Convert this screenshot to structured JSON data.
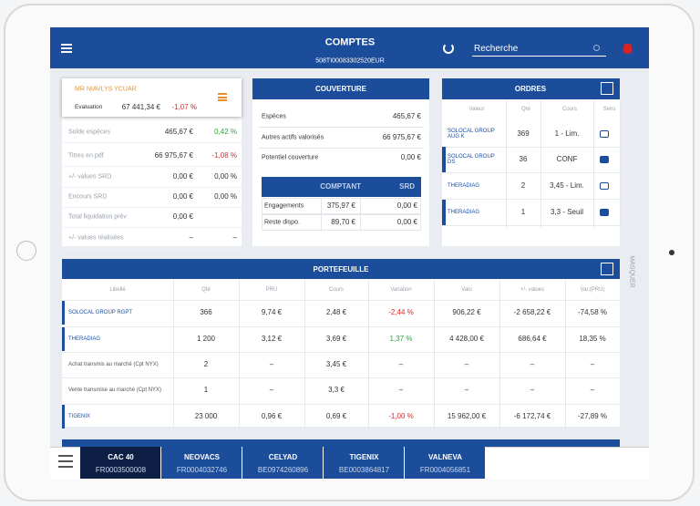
{
  "header": {
    "title": "COMPTES",
    "account": "508TI00083302520EUR",
    "search": "Recherche"
  },
  "account": {
    "name": "MR NIAVLYS YCUAR",
    "evaluation_label": "Evaluation",
    "evaluation_value": "67 441,34 €",
    "evaluation_change": "-1,07 %",
    "rows": [
      [
        "Solde espèces",
        "465,67 €",
        "0,42 %"
      ],
      [
        "Titres en pdf",
        "66 975,67 €",
        "-1,08 %"
      ],
      [
        "+/- values SRD",
        "0,00 €",
        "0,00 %"
      ],
      [
        "Encours SRD",
        "0,00 €",
        "0,00 %"
      ],
      [
        "Total liquidation prév",
        "0,00 €"
      ],
      [
        "+/- values réalisées",
        "–",
        "–"
      ]
    ]
  },
  "couverture": {
    "title": "COUVERTURE",
    "rows": [
      [
        "Espèces",
        "465,67 €"
      ],
      [
        "Autres actifs valorisés",
        "66 975,67 €"
      ],
      [
        "Potentiel couverture",
        "0,00 €"
      ]
    ],
    "subtable": {
      "headers": [
        "COMPTANT",
        "SRD"
      ],
      "rows": [
        [
          "Engagements",
          "375,97 €",
          "0,00 €"
        ],
        [
          "Reste dispo.",
          "89,70 €",
          "0,00 €"
        ]
      ]
    }
  },
  "orders": {
    "title": "ORDRES",
    "headers": [
      "Valeur",
      "Qté",
      "Cours",
      "Sens"
    ],
    "rows": [
      [
        "SOLOCAL GROUP AUG K",
        "369",
        "1 - Lim."
      ],
      [
        "SOLOCAL GROUP DS",
        "36",
        "CONF"
      ],
      [
        "THERADIAG",
        "2",
        "3,45 - Lim."
      ],
      [
        "THERADIAG",
        "1",
        "3,3 - Seuil"
      ]
    ]
  },
  "portfolio": {
    "title": "PORTEFEUILLE",
    "headers": [
      "Libellé",
      "Qté",
      "PRU",
      "Cours",
      "Variation",
      "Valo",
      "+/- values",
      "Var.(PRU)"
    ],
    "rows": [
      [
        "SOLOCAL GROUP RGPT",
        "366",
        "9,74 €",
        "2,48 €",
        "-2,44 %",
        "906,22 €",
        "-2 658,22 €",
        "-74,58 %"
      ],
      [
        "THERADIAG",
        "1 200",
        "3,12 €",
        "3,69 €",
        "1,37 %",
        "4 428,00 €",
        "686,64 €",
        "18,35 %"
      ],
      [
        "Achat transmis au marché (Cpt NYX)",
        "2",
        "–",
        "3,45 €",
        "–",
        "–",
        "–",
        "–"
      ],
      [
        "Vente transmise au marché (Cpt NYX)",
        "1",
        "–",
        "3,3 €",
        "–",
        "–",
        "–",
        "–"
      ],
      [
        "TIGENIX",
        "23 000",
        "0,96 €",
        "0,69 €",
        "-1,00 %",
        "15 962,00 €",
        "-6 172,74 €",
        "-27,89 %"
      ]
    ]
  },
  "ticker": [
    {
      "name": "CAC 40",
      "code": "FR0003500008"
    },
    {
      "name": "NEOVACS",
      "code": "FR0004032746"
    },
    {
      "name": "CELYAD",
      "code": "BE0974260896"
    },
    {
      "name": "TIGENIX",
      "code": "BE0003864817"
    },
    {
      "name": "VALNEVA",
      "code": "FR0004056851"
    }
  ],
  "side_label": "MASQUER"
}
